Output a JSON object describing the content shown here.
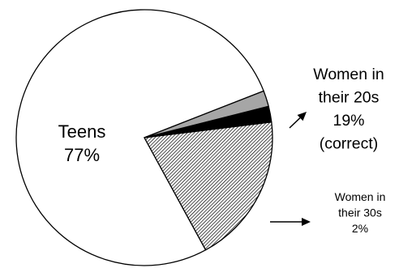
{
  "chart_data": {
    "type": "pie",
    "title": "",
    "slices": [
      {
        "label_lines": [
          "Teens",
          "77%"
        ],
        "value": 77,
        "fill": "#ffffff"
      },
      {
        "label_lines": [
          "Women in",
          "their 20s",
          "19%",
          "(correct)"
        ],
        "value": 19,
        "fill": "hatched"
      },
      {
        "label_lines": [],
        "value": 2,
        "fill": "#000000"
      },
      {
        "label_lines": [
          "Women in",
          "their 30s",
          "2%"
        ],
        "value": 2,
        "fill": "#a6a6a6"
      }
    ]
  }
}
